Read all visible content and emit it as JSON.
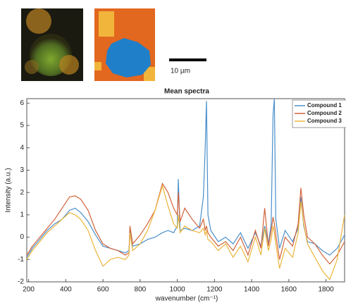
{
  "scale_bar_label": "10 µm",
  "chart_data": {
    "type": "line",
    "title": "Mean spectra",
    "x_label": "wavenumber (cm⁻¹)",
    "y_label": "Intensity (a.u.)",
    "x": [
      190,
      220,
      260,
      300,
      340,
      380,
      420,
      450,
      480,
      520,
      560,
      600,
      640,
      680,
      720,
      740,
      745,
      760,
      800,
      840,
      880,
      920,
      950,
      980,
      1000,
      1005,
      1015,
      1040,
      1080,
      1120,
      1140,
      1150,
      1157,
      1165,
      1180,
      1220,
      1260,
      1300,
      1340,
      1380,
      1420,
      1450,
      1470,
      1490,
      1505,
      1515,
      1522,
      1530,
      1550,
      1580,
      1620,
      1650,
      1665,
      1680,
      1700,
      1740,
      1780,
      1820,
      1860,
      1900
    ],
    "series": [
      {
        "name": "Compound 1",
        "color": "#4a8fcb",
        "values": [
          -0.9,
          -0.5,
          -0.1,
          0.3,
          0.6,
          0.8,
          1.2,
          1.3,
          1.1,
          0.7,
          0.1,
          -0.4,
          -0.5,
          -0.6,
          -0.7,
          -0.6,
          0.3,
          -0.4,
          -0.3,
          -0.1,
          0.0,
          0.2,
          0.3,
          0.2,
          0.5,
          2.6,
          0.3,
          0.4,
          0.3,
          0.5,
          1.8,
          4.0,
          6.1,
          1.0,
          0.3,
          -0.2,
          0.0,
          -0.3,
          0.2,
          -0.5,
          0.2,
          -0.4,
          0.5,
          -0.3,
          0.6,
          5.5,
          6.2,
          0.8,
          -0.5,
          0.3,
          -0.2,
          0.4,
          1.8,
          0.5,
          -0.2,
          -0.3,
          -0.6,
          -0.8,
          -0.5,
          0.1
        ]
      },
      {
        "name": "Compound 2",
        "color": "#d2633b",
        "values": [
          -0.8,
          -0.4,
          0.0,
          0.4,
          0.8,
          1.3,
          1.8,
          1.85,
          1.7,
          1.2,
          0.3,
          -0.3,
          -0.5,
          -0.6,
          -0.8,
          -0.7,
          0.5,
          -0.3,
          0.1,
          0.6,
          1.2,
          2.4,
          2.0,
          1.3,
          1.0,
          2.0,
          0.7,
          1.3,
          0.8,
          0.4,
          0.8,
          0.3,
          0.5,
          0.2,
          0.0,
          -0.4,
          -0.2,
          -0.6,
          0.0,
          -0.8,
          0.3,
          -0.5,
          1.3,
          -0.4,
          0.3,
          0.9,
          0.6,
          0.1,
          -1.0,
          0.0,
          -0.4,
          0.6,
          2.2,
          1.0,
          0.0,
          -0.3,
          -0.8,
          -1.2,
          -0.8,
          -0.2
        ]
      },
      {
        "name": "Compound 3",
        "color": "#ecb53c",
        "values": [
          -1.0,
          -0.6,
          -0.2,
          0.2,
          0.5,
          0.8,
          1.1,
          1.0,
          0.8,
          0.3,
          -0.6,
          -1.3,
          -1.0,
          -0.9,
          -1.0,
          -0.8,
          0.2,
          -0.6,
          -0.3,
          0.3,
          1.2,
          2.3,
          1.4,
          0.6,
          0.4,
          1.0,
          0.2,
          0.5,
          0.3,
          0.2,
          0.4,
          0.1,
          0.3,
          -0.1,
          -0.2,
          -0.6,
          -0.3,
          -0.9,
          -0.4,
          -1.1,
          0.0,
          -0.8,
          0.4,
          -0.6,
          -0.1,
          0.5,
          0.2,
          -0.3,
          -1.4,
          -0.5,
          -0.9,
          0.2,
          1.6,
          0.6,
          -0.3,
          -0.9,
          -1.5,
          -1.9,
          -1.0,
          1.0
        ]
      }
    ],
    "xlim": [
      190,
      1900
    ],
    "ylim": [
      -2,
      6.2
    ],
    "xticks": [
      200,
      400,
      600,
      800,
      1000,
      1200,
      1400,
      1600,
      1800
    ],
    "yticks": [
      -2,
      -1,
      0,
      1,
      2,
      3,
      4,
      5,
      6
    ],
    "grid": false,
    "legend": "upper right"
  }
}
